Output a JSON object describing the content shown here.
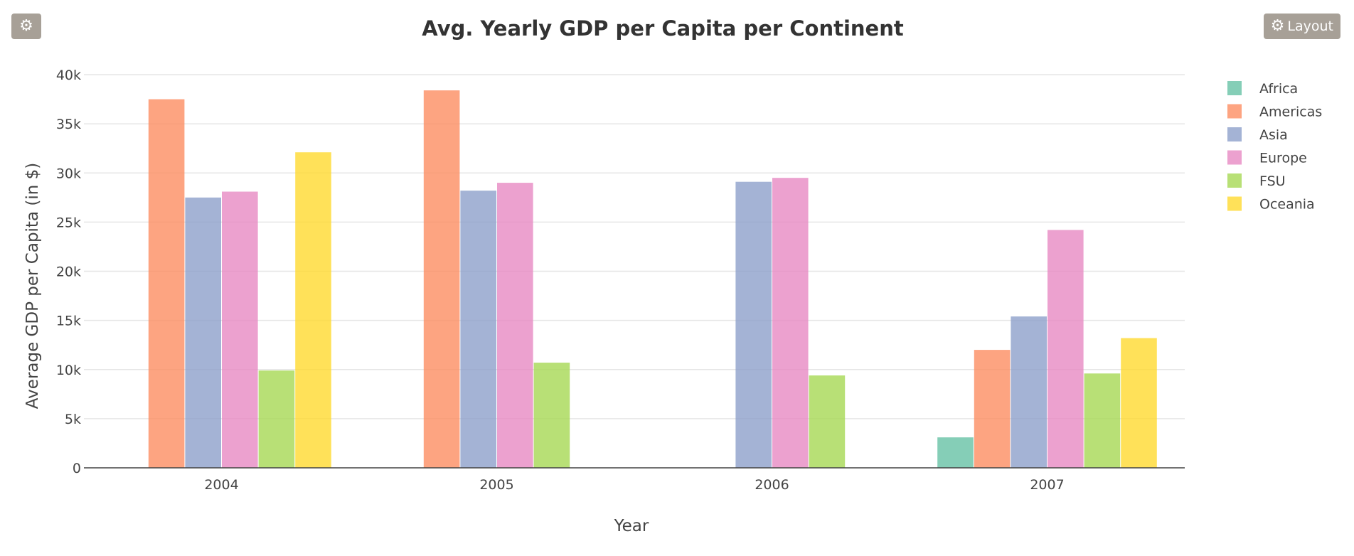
{
  "toolbar": {
    "settings_icon": "gear-icon",
    "layout_icon": "gear-icon",
    "layout_label": "Layout"
  },
  "chart_data": {
    "type": "bar",
    "title": "Avg. Yearly GDP per Capita per Continent",
    "xlabel": "Year",
    "ylabel": "Average GDP per Capita (in $)",
    "categories": [
      "2004",
      "2005",
      "2006",
      "2007"
    ],
    "ylim": [
      0,
      40000
    ],
    "yticks": [
      0,
      5000,
      10000,
      15000,
      20000,
      25000,
      30000,
      35000,
      40000
    ],
    "ytick_labels": [
      "0",
      "5k",
      "10k",
      "15k",
      "20k",
      "25k",
      "30k",
      "35k",
      "40k"
    ],
    "grid": true,
    "legend_position": "top-right",
    "series": [
      {
        "name": "Africa",
        "color": "#66c2a5",
        "values": [
          null,
          null,
          null,
          3100
        ]
      },
      {
        "name": "Americas",
        "color": "#fc8d62",
        "values": [
          37500,
          38400,
          null,
          12000
        ]
      },
      {
        "name": "Asia",
        "color": "#8da0cb",
        "values": [
          27500,
          28200,
          29100,
          15400
        ]
      },
      {
        "name": "Europe",
        "color": "#e78ac3",
        "values": [
          28100,
          29000,
          29500,
          24200
        ]
      },
      {
        "name": "FSU",
        "color": "#a6d854",
        "values": [
          9900,
          10700,
          9400,
          9600
        ]
      },
      {
        "name": "Oceania",
        "color": "#ffd92f",
        "values": [
          32100,
          null,
          null,
          13200
        ]
      }
    ]
  }
}
